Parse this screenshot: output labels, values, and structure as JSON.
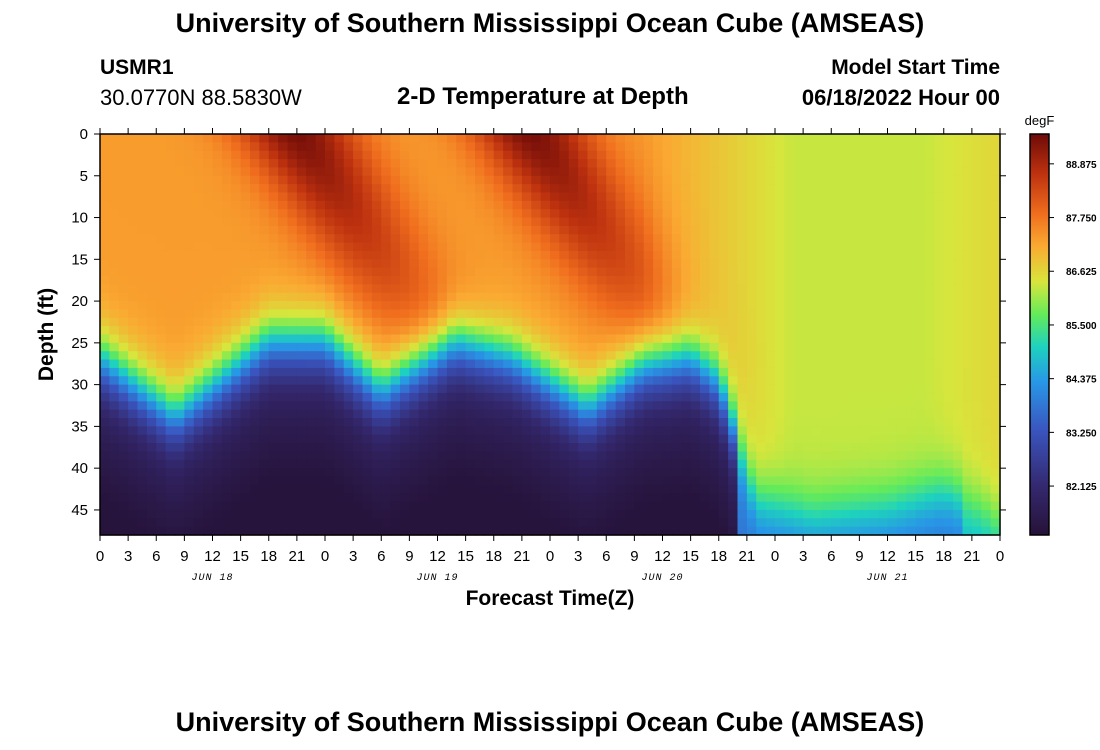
{
  "header": {
    "title": "University of Southern Mississippi Ocean Cube (AMSEAS)",
    "station": "USMR1",
    "coords": "30.0770N  88.5830W",
    "subtitle": "2-D Temperature at Depth",
    "start_label": "Model Start Time",
    "start_value": "06/18/2022 Hour 00"
  },
  "footer": {
    "title": "University of Southern Mississippi Ocean Cube (AMSEAS)"
  },
  "chart_data": {
    "type": "heatmap",
    "title": "2-D Temperature at Depth",
    "xlabel": "Forecast Time(Z)",
    "ylabel": "Depth (ft)",
    "x_ticks": [
      "0",
      "3",
      "6",
      "9",
      "12",
      "15",
      "18",
      "21",
      "0",
      "3",
      "6",
      "9",
      "12",
      "15",
      "18",
      "21",
      "0",
      "3",
      "6",
      "9",
      "12",
      "15",
      "18",
      "21",
      "0",
      "3",
      "6",
      "9",
      "12",
      "15",
      "18",
      "21",
      "0"
    ],
    "x_range_hours": [
      0,
      96
    ],
    "date_labels": [
      {
        "label": "JUN 18",
        "hour": 12
      },
      {
        "label": "JUN 19",
        "hour": 36
      },
      {
        "label": "JUN 20",
        "hour": 60
      },
      {
        "label": "JUN 21",
        "hour": 84
      }
    ],
    "y_ticks": [
      0,
      5,
      10,
      15,
      20,
      25,
      30,
      35,
      40,
      45
    ],
    "ylim": [
      0,
      48
    ],
    "y_inverted": true,
    "colorbar": {
      "unit": "degF",
      "range": [
        81.1,
        89.5
      ],
      "tick_values": [
        82.125,
        83.25,
        84.375,
        85.5,
        86.625,
        87.75,
        88.875
      ],
      "tick_labels": [
        "82.125",
        "83.250",
        "84.375",
        "85.500",
        "86.625",
        "87.750",
        "88.875"
      ]
    },
    "thermocline_depth_ft": [
      {
        "hour": 0,
        "depth": 27
      },
      {
        "hour": 8,
        "depth": 34
      },
      {
        "hour": 18,
        "depth": 25
      },
      {
        "hour": 24,
        "depth": 25
      },
      {
        "hour": 30,
        "depth": 31
      },
      {
        "hour": 38,
        "depth": 25
      },
      {
        "hour": 44,
        "depth": 27
      },
      {
        "hour": 52,
        "depth": 33
      },
      {
        "hour": 58,
        "depth": 28
      },
      {
        "hour": 63,
        "depth": 27
      },
      {
        "hour": 66,
        "depth": 30
      },
      {
        "hour": 70,
        "depth": 44
      },
      {
        "hour": 76,
        "depth": 46
      },
      {
        "hour": 84,
        "depth": 45
      },
      {
        "hour": 90,
        "depth": 43
      },
      {
        "hour": 94,
        "depth": 45
      },
      {
        "hour": 96,
        "depth": 47
      }
    ],
    "warm_band_peaks": [
      {
        "hour": 21,
        "surface_temp": 89.4
      },
      {
        "hour": 46,
        "surface_temp": 89.4
      }
    ],
    "surface_temp_late": 86.3,
    "bottom_temp_min": 81.2
  }
}
